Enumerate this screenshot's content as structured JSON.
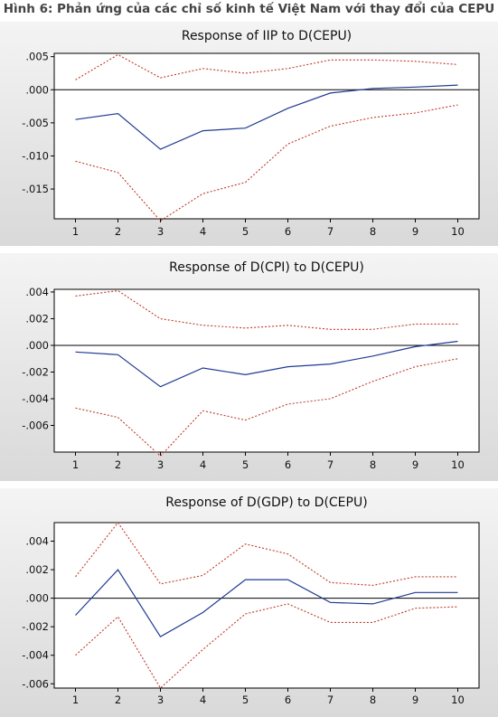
{
  "figure": {
    "title": "Hình 6: Phản ứng của các chỉ số kinh tế Việt Nam với thay đổi của CEPU"
  },
  "colors": {
    "response_line": "#1f3a93",
    "confidence_band": "#c0392b",
    "zero_line": "#000000",
    "panel_background": "#e9e9e9",
    "plot_background": "#ffffff"
  },
  "chart_data": [
    {
      "type": "line",
      "title": "Response of IIP to D(CEPU)",
      "x": [
        1,
        2,
        3,
        4,
        5,
        6,
        7,
        8,
        9,
        10
      ],
      "ylim": [
        -0.0195,
        0.0055
      ],
      "yticks": [
        0.005,
        0.0,
        -0.005,
        -0.01,
        -0.015
      ],
      "ytick_labels": [
        ".005",
        ".000",
        "-.005",
        "-.010",
        "-.015"
      ],
      "grid": false,
      "series": [
        {
          "role": "response",
          "style": "solid",
          "values": [
            -0.0045,
            -0.0036,
            -0.009,
            -0.0062,
            -0.0058,
            -0.0028,
            -0.0005,
            0.0002,
            0.0004,
            0.0007
          ]
        },
        {
          "role": "upper",
          "style": "dotted",
          "values": [
            0.0015,
            0.0053,
            0.0018,
            0.0032,
            0.0025,
            0.0032,
            0.0045,
            0.0045,
            0.0043,
            0.0038
          ]
        },
        {
          "role": "lower",
          "style": "dotted",
          "values": [
            -0.0108,
            -0.0125,
            -0.0198,
            -0.0157,
            -0.014,
            -0.0082,
            -0.0055,
            -0.0042,
            -0.0035,
            -0.0023
          ]
        }
      ]
    },
    {
      "type": "line",
      "title": "Response of D(CPI) to D(CEPU)",
      "x": [
        1,
        2,
        3,
        4,
        5,
        6,
        7,
        8,
        9,
        10
      ],
      "ylim": [
        -0.008,
        0.0042
      ],
      "yticks": [
        0.004,
        0.002,
        0.0,
        -0.002,
        -0.004,
        -0.006
      ],
      "ytick_labels": [
        ".004",
        ".002",
        ".000",
        "-.002",
        "-.004",
        "-.006"
      ],
      "grid": false,
      "series": [
        {
          "role": "response",
          "style": "solid",
          "values": [
            -0.0005,
            -0.0007,
            -0.0031,
            -0.0017,
            -0.0022,
            -0.0016,
            -0.0014,
            -0.0008,
            -0.0001,
            0.0003
          ]
        },
        {
          "role": "upper",
          "style": "dotted",
          "values": [
            0.0037,
            0.0041,
            0.002,
            0.0015,
            0.0013,
            0.0015,
            0.0012,
            0.0012,
            0.0016,
            0.0016
          ]
        },
        {
          "role": "lower",
          "style": "dotted",
          "values": [
            -0.0047,
            -0.0054,
            -0.0083,
            -0.0049,
            -0.0056,
            -0.0044,
            -0.004,
            -0.0027,
            -0.0016,
            -0.001
          ]
        }
      ]
    },
    {
      "type": "line",
      "title": "Response of D(GDP) to D(CEPU)",
      "x": [
        1,
        2,
        3,
        4,
        5,
        6,
        7,
        8,
        9,
        10
      ],
      "ylim": [
        -0.0063,
        0.0053
      ],
      "yticks": [
        0.004,
        0.002,
        0.0,
        -0.002,
        -0.004,
        -0.006
      ],
      "ytick_labels": [
        ".004",
        ".002",
        ".000",
        "-.002",
        "-.004",
        "-.006"
      ],
      "grid": false,
      "series": [
        {
          "role": "response",
          "style": "solid",
          "values": [
            -0.0012,
            0.002,
            -0.0027,
            -0.001,
            0.0013,
            0.0013,
            -0.0003,
            -0.0004,
            0.0004,
            0.0004
          ]
        },
        {
          "role": "upper",
          "style": "dotted",
          "values": [
            0.0015,
            0.0053,
            0.001,
            0.0016,
            0.0038,
            0.0031,
            0.0011,
            0.0009,
            0.0015,
            0.0015
          ]
        },
        {
          "role": "lower",
          "style": "dotted",
          "values": [
            -0.004,
            -0.0013,
            -0.0063,
            -0.0036,
            -0.0011,
            -0.0004,
            -0.0017,
            -0.0017,
            -0.0007,
            -0.0006
          ]
        }
      ]
    }
  ]
}
